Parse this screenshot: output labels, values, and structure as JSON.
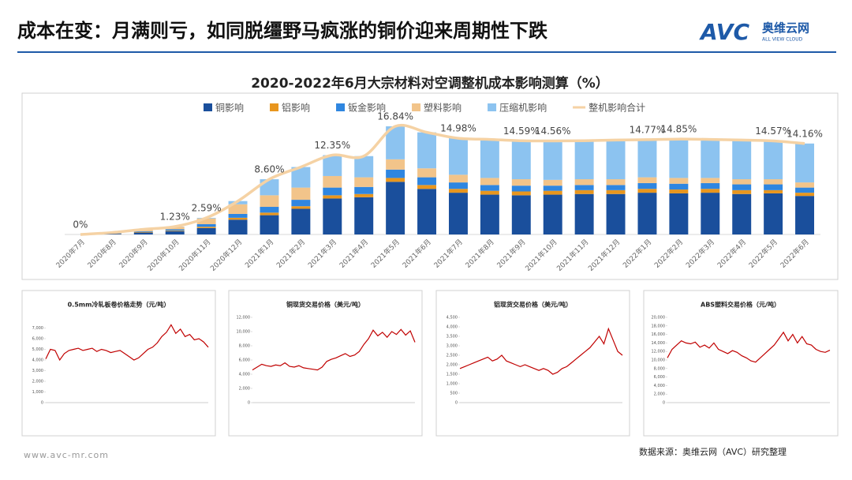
{
  "header": {
    "title": "成本在变：月满则亏，如同脱缰野马疯涨的铜价迎来周期性下跌",
    "logo": {
      "mark": "AVC",
      "name": "奥维云网",
      "tagline": "ALL VIEW CLOUD"
    }
  },
  "chart_data": [
    {
      "type": "bar",
      "stacked": true,
      "title": "2020-2022年6月大宗材料对空调整机成本影响测算（%）",
      "categories": [
        "2020年7月",
        "2020年8月",
        "2020年9月",
        "2020年10月",
        "2020年11月",
        "2020年12月",
        "2021年1月",
        "2021年2月",
        "2021年3月",
        "2021年4月",
        "2021年5月",
        "2021年6月",
        "2021年7月",
        "2021年8月",
        "2021年9月",
        "2021年10月",
        "2021年11月",
        "2021年12月",
        "2022年1月",
        "2022年2月",
        "2022年3月",
        "2022年4月",
        "2022年5月",
        "2022年6月"
      ],
      "series": [
        {
          "name": "铜影响",
          "color": "#1a4f9c",
          "values": [
            0,
            0.1,
            0.3,
            0.5,
            1.0,
            2.3,
            3.0,
            4.0,
            5.6,
            5.8,
            8.2,
            7.1,
            6.5,
            6.2,
            6.1,
            6.2,
            6.3,
            6.3,
            6.5,
            6.4,
            6.5,
            6.3,
            6.4,
            6.0
          ]
        },
        {
          "name": "铝影响",
          "color": "#e8961e",
          "values": [
            0,
            0.05,
            0.1,
            0.1,
            0.2,
            0.3,
            0.4,
            0.4,
            0.5,
            0.5,
            0.6,
            0.6,
            0.6,
            0.6,
            0.6,
            0.6,
            0.6,
            0.6,
            0.6,
            0.6,
            0.6,
            0.6,
            0.5,
            0.5
          ]
        },
        {
          "name": "钣金影响",
          "color": "#2f86e0",
          "values": [
            0,
            0.05,
            0.1,
            0.2,
            0.4,
            0.6,
            0.9,
            1.0,
            1.2,
            1.1,
            1.3,
            1.2,
            1.0,
            0.9,
            0.9,
            0.8,
            0.8,
            0.8,
            0.9,
            0.9,
            0.9,
            0.9,
            0.9,
            0.8
          ]
        },
        {
          "name": "塑料影响",
          "color": "#f2c48a",
          "values": [
            0,
            0.1,
            0.3,
            0.4,
            0.9,
            1.5,
            1.8,
            1.9,
            1.8,
            1.5,
            1.6,
            1.4,
            1.2,
            1.1,
            1.0,
            0.9,
            0.9,
            0.9,
            0.9,
            0.9,
            0.8,
            0.8,
            0.8,
            0.8
          ]
        },
        {
          "name": "压缩机影响",
          "color": "#8cc3f0",
          "values": [
            0,
            0,
            0,
            0.03,
            0.09,
            0.5,
            2.5,
            3.2,
            3.25,
            3.3,
            5.14,
            5.6,
            5.68,
            6.0,
            5.99,
            6.06,
            6.0,
            6.1,
            5.87,
            6.05,
            6.0,
            6.1,
            5.97,
            6.06
          ]
        },
        {
          "name": "整机影响合计",
          "type": "line",
          "color": "#f5d2a4",
          "values": [
            0,
            0.3,
            0.8,
            1.23,
            2.59,
            5.2,
            8.6,
            10.5,
            12.35,
            12.2,
            16.84,
            15.9,
            14.98,
            14.8,
            14.59,
            14.56,
            14.6,
            14.7,
            14.77,
            14.85,
            14.8,
            14.7,
            14.57,
            14.16
          ],
          "value_labels": [
            "0%",
            null,
            null,
            "1.23%",
            "2.59%",
            null,
            "8.60%",
            null,
            "12.35%",
            null,
            "16.84%",
            null,
            "14.98%",
            null,
            "14.59%",
            "14.56%",
            null,
            null,
            "14.77%",
            "14.85%",
            null,
            null,
            "14.57%",
            "14.16%"
          ]
        }
      ]
    },
    {
      "type": "line",
      "title": "0.5mm冷轧板卷价格走势（元/吨）",
      "series": [
        {
          "color": "#c00000",
          "values": [
            4100,
            5000,
            4900,
            4000,
            4600,
            4900,
            5000,
            5100,
            4900,
            5000,
            5100,
            4800,
            5000,
            4900,
            4700,
            4800,
            4900,
            4600,
            4300,
            4000,
            4200,
            4600,
            5000,
            5200,
            5600,
            6200,
            6600,
            7300,
            6500,
            6900,
            6200,
            6400,
            5900,
            6000,
            5700,
            5200
          ]
        }
      ],
      "ylim": [
        0,
        8000
      ],
      "yticks": [
        0,
        {
          "value": 1000,
          "label": "1,000"
        },
        {
          "value": 2000,
          "label": "2,000"
        },
        {
          "value": 3000,
          "label": "3,000"
        },
        {
          "value": 4000,
          "label": "4,000"
        },
        {
          "value": 5000,
          "label": "5,000"
        },
        {
          "value": 6000,
          "label": "6,000"
        },
        {
          "value": 7000,
          "label": "7,000"
        }
      ]
    },
    {
      "type": "line",
      "title": "铜现货交易价格（美元/吨）",
      "series": [
        {
          "color": "#c00000",
          "values": [
            4600,
            5000,
            5400,
            5200,
            5100,
            5300,
            5200,
            5600,
            5100,
            5000,
            5200,
            4900,
            4800,
            4700,
            4600,
            5000,
            5800,
            6100,
            6300,
            6600,
            6900,
            6500,
            6700,
            7200,
            8200,
            9000,
            10200,
            9400,
            9900,
            9200,
            10000,
            9600,
            10300,
            9500,
            10100,
            8500
          ]
        }
      ],
      "ylim": [
        0,
        12000
      ],
      "yticks": [
        0,
        {
          "value": 2000,
          "label": "2,000"
        },
        {
          "value": 4000,
          "label": "4,000"
        },
        {
          "value": 6000,
          "label": "6,000"
        },
        {
          "value": 8000,
          "label": "8,000"
        },
        {
          "value": 10000,
          "label": "10,000"
        },
        {
          "value": 12000,
          "label": "12,000"
        }
      ]
    },
    {
      "type": "line",
      "title": "铝现货交易价格（美元/吨）",
      "series": [
        {
          "color": "#c00000",
          "values": [
            1800,
            1900,
            2000,
            2100,
            2200,
            2300,
            2400,
            2200,
            2300,
            2500,
            2200,
            2100,
            2000,
            1900,
            2000,
            1900,
            1800,
            1700,
            1800,
            1700,
            1500,
            1600,
            1800,
            1900,
            2100,
            2300,
            2500,
            2700,
            2900,
            3200,
            3500,
            3100,
            3900,
            3300,
            2700,
            2500
          ]
        }
      ],
      "ylim": [
        0,
        4500
      ],
      "yticks": [
        0,
        500,
        {
          "value": 1000,
          "label": "1,000"
        },
        {
          "value": 1500,
          "label": "1,500"
        },
        {
          "value": 2000,
          "label": "2,000"
        },
        {
          "value": 2500,
          "label": "2,500"
        },
        {
          "value": 3000,
          "label": "3,000"
        },
        {
          "value": 3500,
          "label": "3,500"
        },
        {
          "value": 4000,
          "label": "4,000"
        },
        {
          "value": 4500,
          "label": "4,500"
        }
      ]
    },
    {
      "type": "line",
      "title": "ABS塑料交易价格（元/吨）",
      "series": [
        {
          "color": "#c00000",
          "values": [
            10500,
            12500,
            13500,
            14500,
            14000,
            13800,
            14200,
            13000,
            13500,
            12800,
            14000,
            12500,
            12000,
            11500,
            12200,
            11800,
            11000,
            10500,
            9800,
            9500,
            10500,
            11500,
            12500,
            13500,
            15000,
            16500,
            14500,
            16000,
            14000,
            15500,
            13800,
            13500,
            12500,
            12000,
            11800,
            12300
          ]
        }
      ],
      "ylim": [
        0,
        20000
      ],
      "yticks": [
        0,
        {
          "value": 2000,
          "label": "2,000"
        },
        {
          "value": 4000,
          "label": "4,000"
        },
        {
          "value": 6000,
          "label": "6,000"
        },
        {
          "value": 8000,
          "label": "8,000"
        },
        {
          "value": 10000,
          "label": "10,000"
        },
        {
          "value": 12000,
          "label": "12,000"
        },
        {
          "value": 14000,
          "label": "14,000"
        },
        {
          "value": 16000,
          "label": "16,000"
        },
        {
          "value": 18000,
          "label": "18,000"
        },
        {
          "value": 20000,
          "label": "20,000"
        }
      ]
    }
  ],
  "footer": {
    "website": "www.avc-mr.com",
    "source": "数据来源：奥维云网（AVC）研究整理"
  }
}
